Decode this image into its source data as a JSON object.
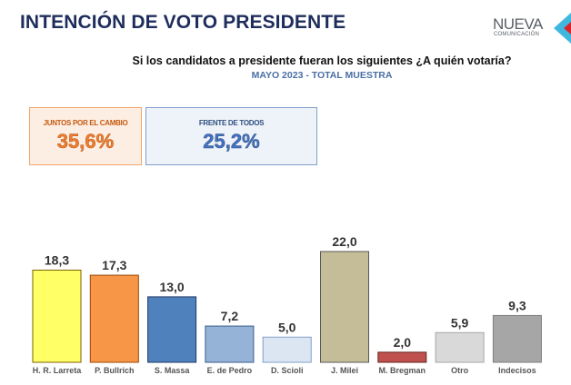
{
  "header": {
    "title": "INTENCIÓN DE VOTO PRESIDENTE",
    "logo_main": "NUEVA",
    "logo_sub": "COMUNICACIÓN"
  },
  "question": "Si los candidatos a presidente fueran los siguientes ¿A quién votaría?",
  "sample": "MAYO 2023 - TOTAL MUESTRA",
  "summary_boxes": [
    {
      "label": "JUNTOS POR EL CAMBIO",
      "value": "35,6%"
    },
    {
      "label": "FRENTE DE TODOS",
      "value": "25,2%"
    }
  ],
  "chart_data": {
    "type": "bar",
    "title": "Si los candidatos a presidente fueran los siguientes ¿A quién votaría?",
    "subtitle": "MAYO 2023 - TOTAL MUESTRA",
    "xlabel": "",
    "ylabel": "",
    "ylim": [
      0,
      22
    ],
    "grid": false,
    "categories": [
      "H. R. Larreta",
      "P. Bullrich",
      "S. Massa",
      "E. de Pedro",
      "D. Scioli",
      "J. Milei",
      "M. Bregman",
      "Otro",
      "Indecisos"
    ],
    "values": [
      18.3,
      17.3,
      13.0,
      7.2,
      5.0,
      22.0,
      2.0,
      5.9,
      9.3
    ],
    "value_labels": [
      "18,3",
      "17,3",
      "13,0",
      "7,2",
      "5,0",
      "22,0",
      "2,0",
      "5,9",
      "9,3"
    ],
    "colors": [
      "#ffff66",
      "#f79646",
      "#4f81bd",
      "#95b3d7",
      "#dce6f2",
      "#c4bd97",
      "#c0504d",
      "#d9d9d9",
      "#a6a6a6"
    ],
    "border_colors": [
      "#7f6000",
      "#984807",
      "#1f3864",
      "#385d8a",
      "#7f9fc9",
      "#595959",
      "#632523",
      "#a6a6a6",
      "#7f7f7f"
    ]
  }
}
